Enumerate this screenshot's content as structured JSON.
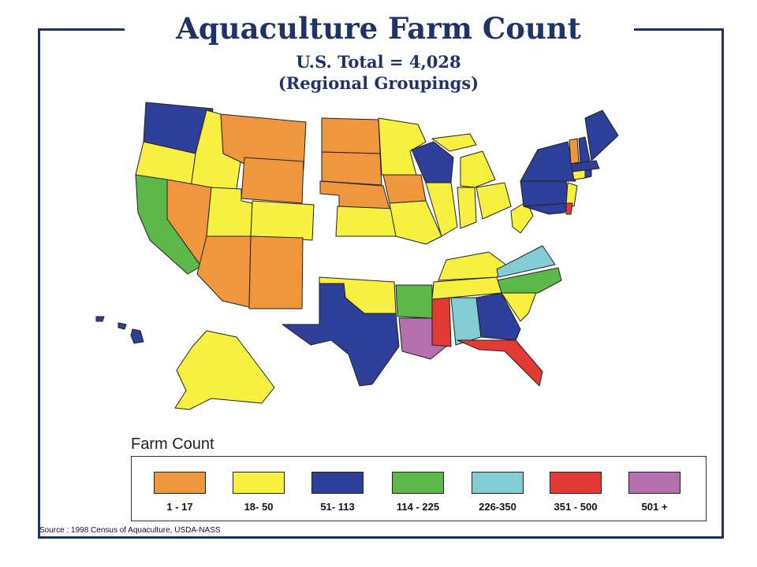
{
  "title": "Aquaculture Farm Count",
  "subtitle_total": "U.S. Total = 4,028",
  "subtitle_groupings": "(Regional Groupings)",
  "legend": {
    "title": "Farm Count",
    "items": [
      {
        "label": "1 - 17",
        "color": "#f0963c"
      },
      {
        "label": "18- 50",
        "color": "#f8f040"
      },
      {
        "label": "51- 113",
        "color": "#2d3f99"
      },
      {
        "label": "114 - 225",
        "color": "#5db84a"
      },
      {
        "label": "226-350",
        "color": "#82ccd4"
      },
      {
        "label": "351 - 500",
        "color": "#e23a34"
      },
      {
        "label": "501 +",
        "color": "#b46fae"
      }
    ]
  },
  "source": "Source : 1998 Census of Aquaculture, USDA-NASS",
  "frame_color": "#1f3366"
}
